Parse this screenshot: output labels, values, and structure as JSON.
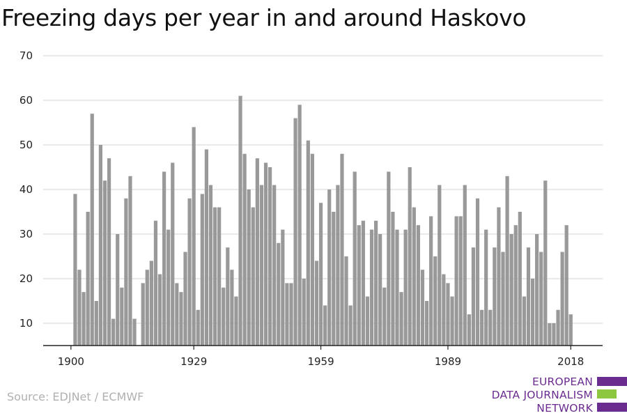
{
  "chart_data": {
    "type": "bar",
    "title": "Freezing days per year in and around Haskovo",
    "xlabel": "",
    "ylabel": "",
    "x": [
      1900,
      1901,
      1902,
      1903,
      1904,
      1905,
      1906,
      1907,
      1908,
      1909,
      1910,
      1911,
      1912,
      1913,
      1914,
      1915,
      1916,
      1917,
      1918,
      1919,
      1920,
      1921,
      1922,
      1923,
      1924,
      1925,
      1926,
      1927,
      1928,
      1929,
      1930,
      1931,
      1932,
      1933,
      1934,
      1935,
      1936,
      1937,
      1938,
      1939,
      1940,
      1941,
      1942,
      1943,
      1944,
      1945,
      1946,
      1947,
      1948,
      1949,
      1950,
      1951,
      1952,
      1953,
      1954,
      1955,
      1956,
      1957,
      1958,
      1959,
      1960,
      1961,
      1962,
      1963,
      1964,
      1965,
      1966,
      1967,
      1968,
      1969,
      1970,
      1971,
      1972,
      1973,
      1974,
      1975,
      1976,
      1977,
      1978,
      1979,
      1980,
      1981,
      1982,
      1983,
      1984,
      1985,
      1986,
      1987,
      1988,
      1989,
      1990,
      1991,
      1992,
      1993,
      1994,
      1995,
      1996,
      1997,
      1998,
      1999,
      2000,
      2001,
      2002,
      2003,
      2004,
      2005,
      2006,
      2007,
      2008,
      2009,
      2010,
      2011,
      2012,
      2013,
      2014,
      2015,
      2016,
      2017,
      2018
    ],
    "values": [
      5,
      39,
      22,
      17,
      35,
      57,
      15,
      50,
      42,
      47,
      11,
      30,
      18,
      38,
      43,
      11,
      5,
      19,
      22,
      24,
      33,
      21,
      44,
      31,
      46,
      19,
      17,
      26,
      38,
      54,
      13,
      39,
      49,
      41,
      36,
      36,
      18,
      27,
      22,
      16,
      61,
      48,
      40,
      36,
      47,
      41,
      46,
      45,
      41,
      28,
      31,
      19,
      19,
      56,
      59,
      20,
      51,
      48,
      24,
      37,
      14,
      40,
      35,
      41,
      48,
      25,
      14,
      44,
      32,
      33,
      16,
      31,
      33,
      30,
      18,
      44,
      35,
      31,
      17,
      31,
      45,
      36,
      32,
      22,
      15,
      34,
      25,
      41,
      21,
      19,
      16,
      34,
      34,
      41,
      12,
      27,
      38,
      13,
      31,
      13,
      27,
      36,
      26,
      43,
      30,
      32,
      35,
      16,
      27,
      20,
      30,
      26,
      42,
      10,
      10,
      13,
      26,
      32,
      12
    ],
    "ylim": [
      5,
      70
    ],
    "yticks": [
      10,
      20,
      30,
      40,
      50,
      60,
      70
    ],
    "xticks": [
      1900,
      1929,
      1959,
      1989,
      2018
    ],
    "grid": true,
    "color": "#999999"
  },
  "source": "Source: EDJNet / ECMWF",
  "logo": {
    "lines": [
      "EUROPEAN",
      "DATA JOURNALISM",
      "NETWORK"
    ],
    "colors": {
      "text": "#6a2c8f",
      "purple": "#6a2c8f",
      "green": "#8dc63f"
    }
  }
}
